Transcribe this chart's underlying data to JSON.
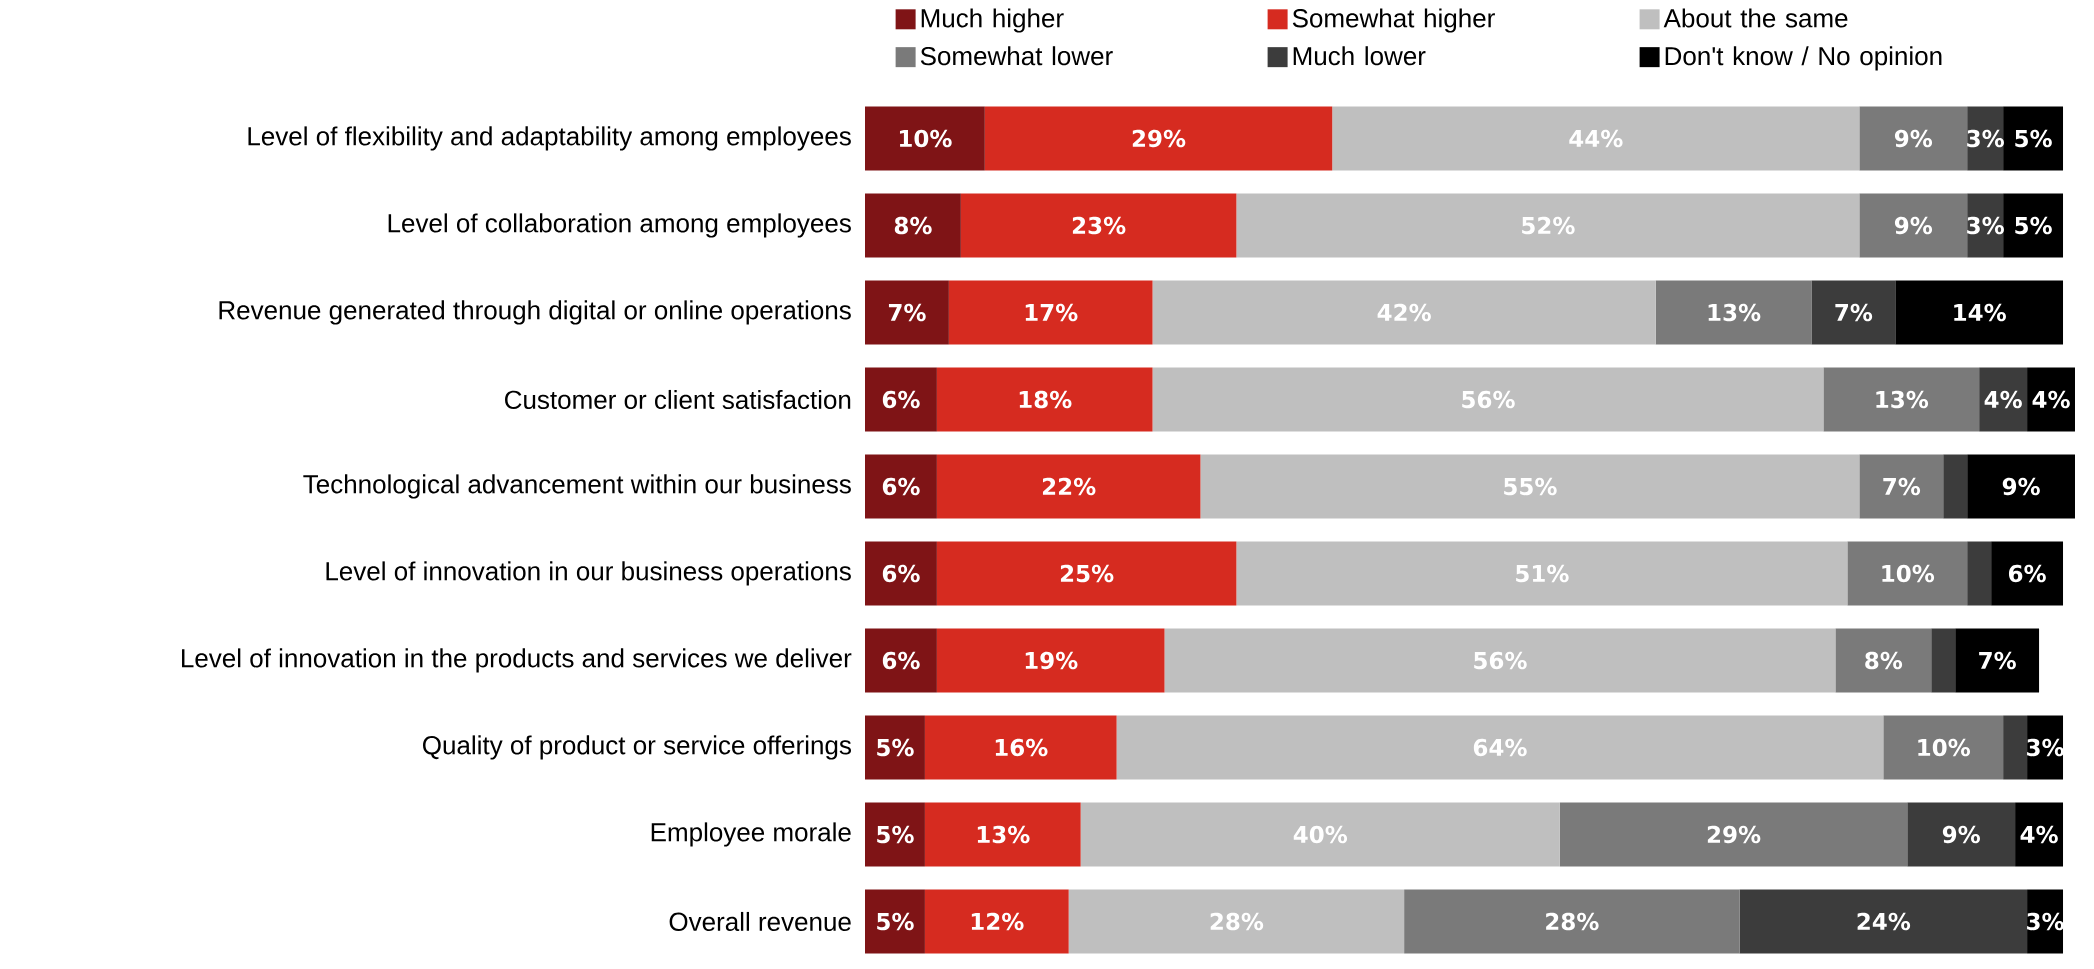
{
  "chart_data": {
    "type": "bar",
    "orientation": "horizontal",
    "stacked": true,
    "legend": "top",
    "categories": [
      "Level of flexibility and adaptability among employees",
      "Level of collaboration among employees",
      "Revenue generated through digital or online operations",
      "Customer or client satisfaction",
      "Technological advancement within our business",
      "Level of innovation in our business operations",
      "Level of innovation in the products and services we deliver",
      "Quality of product or service offerings",
      "Employee morale",
      "Overall revenue"
    ],
    "series": [
      {
        "name": "Much higher",
        "color": "#7f1416",
        "values": [
          10,
          8,
          7,
          6,
          6,
          6,
          6,
          5,
          5,
          5
        ],
        "value_labels": [
          "10%",
          "8%",
          "7%",
          "6%",
          "6%",
          "6%",
          "6%",
          "5%",
          "5%",
          "5%"
        ]
      },
      {
        "name": "Somewhat higher",
        "color": "#d62b20",
        "values": [
          29,
          23,
          17,
          18,
          22,
          25,
          19,
          16,
          13,
          12
        ],
        "value_labels": [
          "29%",
          "23%",
          "17%",
          "18%",
          "22%",
          "25%",
          "19%",
          "16%",
          "13%",
          "12%"
        ]
      },
      {
        "name": "About the same",
        "color": "#bfbfbf",
        "values": [
          44,
          52,
          42,
          56,
          55,
          51,
          56,
          64,
          40,
          28
        ],
        "value_labels": [
          "44%",
          "52%",
          "42%",
          "56%",
          "55%",
          "51%",
          "56%",
          "64%",
          "40%",
          "28%"
        ]
      },
      {
        "name": "Somewhat lower",
        "color": "#7a7a7a",
        "values": [
          9,
          9,
          13,
          13,
          7,
          10,
          8,
          10,
          29,
          28
        ],
        "value_labels": [
          "9%",
          "9%",
          "13%",
          "13%",
          "7%",
          "10%",
          "8%",
          "10%",
          "29%",
          "28%"
        ]
      },
      {
        "name": "Much lower",
        "color": "#3c3c3c",
        "values": [
          3,
          3,
          7,
          4,
          2,
          2,
          2,
          2,
          9,
          24
        ],
        "value_labels": [
          "3%",
          "3%",
          "7%",
          "4%",
          null,
          null,
          null,
          null,
          "9%",
          "24%"
        ]
      },
      {
        "name": "Don't know / No opinion",
        "color": "#000000",
        "values": [
          5,
          5,
          14,
          4,
          9,
          6,
          7,
          3,
          4,
          3
        ],
        "value_labels": [
          "5%",
          "5%",
          "14%",
          "4%",
          "9%",
          "6%",
          "7%",
          "3%",
          "4%",
          "3%"
        ]
      }
    ]
  }
}
